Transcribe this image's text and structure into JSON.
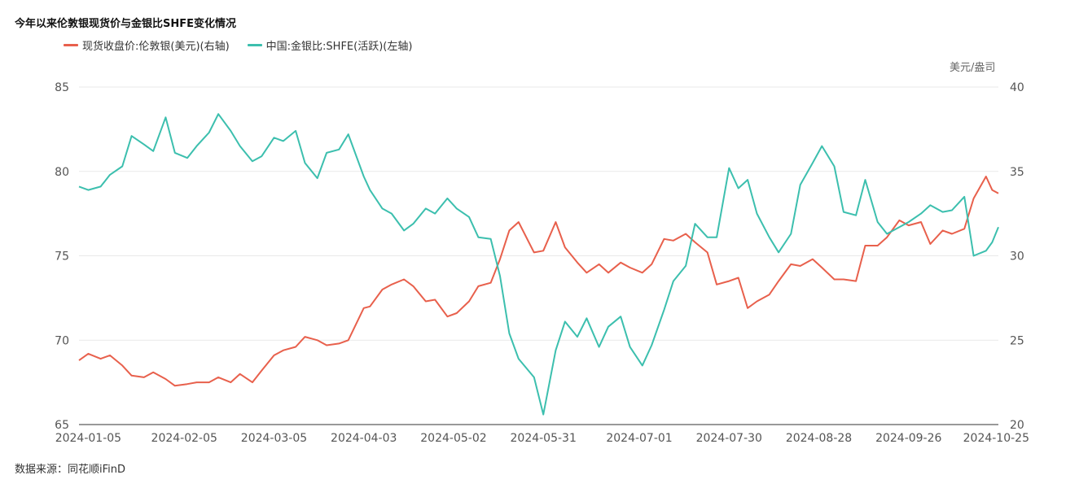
{
  "header": {
    "title": "今年以来伦敦银现货价与金银比SHFE变化情况"
  },
  "legend": [
    {
      "label": "现货收盘价:伦敦银(美元)(右轴)",
      "color": "#e8604c"
    },
    {
      "label": "中国:金银比:SHFE(活跃)(左轴)",
      "color": "#3cbfae"
    }
  ],
  "right_axis_unit": "美元/盎司",
  "footer": {
    "source": "数据来源：同花顺iFinD"
  },
  "chart_data": {
    "type": "line",
    "title": "今年以来伦敦银现货价与金银比SHFE变化情况",
    "x_ticks": [
      "2024-01-05",
      "2024-02-05",
      "2024-03-05",
      "2024-04-03",
      "2024-05-02",
      "2024-05-31",
      "2024-07-01",
      "2024-07-30",
      "2024-08-28",
      "2024-09-26",
      "2024-10-25"
    ],
    "x_range": [
      "2024-01-02",
      "2024-10-25"
    ],
    "left_axis": {
      "ylim": [
        65,
        85
      ],
      "ticks": [
        65,
        70,
        75,
        80,
        85
      ]
    },
    "right_axis": {
      "ylim": [
        20,
        40
      ],
      "ticks": [
        20,
        25,
        30,
        35,
        40
      ],
      "unit": "美元/盎司"
    },
    "grid": true,
    "legend_position": "top-left",
    "series": [
      {
        "name": "现货收盘价:伦敦银(美元)(右轴)",
        "axis": "right",
        "color": "#e8604c",
        "points": [
          [
            "2024-01-02",
            23.8
          ],
          [
            "2024-01-05",
            24.2
          ],
          [
            "2024-01-09",
            23.9
          ],
          [
            "2024-01-12",
            24.1
          ],
          [
            "2024-01-16",
            23.5
          ],
          [
            "2024-01-19",
            22.9
          ],
          [
            "2024-01-23",
            22.8
          ],
          [
            "2024-01-26",
            23.1
          ],
          [
            "2024-01-30",
            22.7
          ],
          [
            "2024-02-02",
            22.3
          ],
          [
            "2024-02-06",
            22.4
          ],
          [
            "2024-02-09",
            22.5
          ],
          [
            "2024-02-13",
            22.5
          ],
          [
            "2024-02-16",
            22.8
          ],
          [
            "2024-02-20",
            22.5
          ],
          [
            "2024-02-23",
            23.0
          ],
          [
            "2024-02-27",
            22.5
          ],
          [
            "2024-03-01",
            23.2
          ],
          [
            "2024-03-05",
            24.1
          ],
          [
            "2024-03-08",
            24.4
          ],
          [
            "2024-03-12",
            24.6
          ],
          [
            "2024-03-15",
            25.2
          ],
          [
            "2024-03-19",
            25.0
          ],
          [
            "2024-03-22",
            24.7
          ],
          [
            "2024-03-26",
            24.8
          ],
          [
            "2024-03-29",
            25.0
          ],
          [
            "2024-04-03",
            26.9
          ],
          [
            "2024-04-05",
            27.0
          ],
          [
            "2024-04-09",
            28.0
          ],
          [
            "2024-04-12",
            28.3
          ],
          [
            "2024-04-16",
            28.6
          ],
          [
            "2024-04-19",
            28.2
          ],
          [
            "2024-04-23",
            27.3
          ],
          [
            "2024-04-26",
            27.4
          ],
          [
            "2024-04-30",
            26.4
          ],
          [
            "2024-05-03",
            26.6
          ],
          [
            "2024-05-07",
            27.3
          ],
          [
            "2024-05-10",
            28.2
          ],
          [
            "2024-05-14",
            28.4
          ],
          [
            "2024-05-17",
            29.8
          ],
          [
            "2024-05-20",
            31.5
          ],
          [
            "2024-05-23",
            32.0
          ],
          [
            "2024-05-28",
            30.2
          ],
          [
            "2024-05-31",
            30.3
          ],
          [
            "2024-06-04",
            32.0
          ],
          [
            "2024-06-07",
            30.5
          ],
          [
            "2024-06-11",
            29.6
          ],
          [
            "2024-06-14",
            29.0
          ],
          [
            "2024-06-18",
            29.5
          ],
          [
            "2024-06-21",
            29.0
          ],
          [
            "2024-06-25",
            29.6
          ],
          [
            "2024-06-28",
            29.3
          ],
          [
            "2024-07-02",
            29.0
          ],
          [
            "2024-07-05",
            29.5
          ],
          [
            "2024-07-09",
            31.0
          ],
          [
            "2024-07-12",
            30.9
          ],
          [
            "2024-07-16",
            31.3
          ],
          [
            "2024-07-19",
            30.8
          ],
          [
            "2024-07-23",
            30.2
          ],
          [
            "2024-07-26",
            28.3
          ],
          [
            "2024-07-30",
            28.5
          ],
          [
            "2024-08-02",
            28.7
          ],
          [
            "2024-08-05",
            26.9
          ],
          [
            "2024-08-08",
            27.3
          ],
          [
            "2024-08-12",
            27.7
          ],
          [
            "2024-08-15",
            28.5
          ],
          [
            "2024-08-19",
            29.5
          ],
          [
            "2024-08-22",
            29.4
          ],
          [
            "2024-08-26",
            29.8
          ],
          [
            "2024-08-29",
            29.3
          ],
          [
            "2024-09-02",
            28.6
          ],
          [
            "2024-09-05",
            28.6
          ],
          [
            "2024-09-09",
            28.5
          ],
          [
            "2024-09-12",
            30.6
          ],
          [
            "2024-09-16",
            30.6
          ],
          [
            "2024-09-19",
            31.1
          ],
          [
            "2024-09-23",
            32.1
          ],
          [
            "2024-09-26",
            31.8
          ],
          [
            "2024-09-30",
            32.0
          ],
          [
            "2024-10-03",
            30.7
          ],
          [
            "2024-10-07",
            31.5
          ],
          [
            "2024-10-10",
            31.3
          ],
          [
            "2024-10-14",
            31.6
          ],
          [
            "2024-10-17",
            33.4
          ],
          [
            "2024-10-21",
            34.7
          ],
          [
            "2024-10-23",
            33.9
          ],
          [
            "2024-10-25",
            33.7
          ]
        ]
      },
      {
        "name": "中国:金银比:SHFE(活跃)(左轴)",
        "axis": "left",
        "color": "#3cbfae",
        "points": [
          [
            "2024-01-02",
            79.1
          ],
          [
            "2024-01-05",
            78.9
          ],
          [
            "2024-01-09",
            79.1
          ],
          [
            "2024-01-12",
            79.8
          ],
          [
            "2024-01-16",
            80.3
          ],
          [
            "2024-01-19",
            82.1
          ],
          [
            "2024-01-23",
            81.6
          ],
          [
            "2024-01-26",
            81.2
          ],
          [
            "2024-01-30",
            83.2
          ],
          [
            "2024-02-02",
            81.1
          ],
          [
            "2024-02-06",
            80.8
          ],
          [
            "2024-02-09",
            81.5
          ],
          [
            "2024-02-13",
            82.3
          ],
          [
            "2024-02-16",
            83.4
          ],
          [
            "2024-02-20",
            82.4
          ],
          [
            "2024-02-23",
            81.5
          ],
          [
            "2024-02-27",
            80.6
          ],
          [
            "2024-03-01",
            80.9
          ],
          [
            "2024-03-05",
            82.0
          ],
          [
            "2024-03-08",
            81.8
          ],
          [
            "2024-03-12",
            82.4
          ],
          [
            "2024-03-15",
            80.5
          ],
          [
            "2024-03-19",
            79.6
          ],
          [
            "2024-03-22",
            81.1
          ],
          [
            "2024-03-26",
            81.3
          ],
          [
            "2024-03-29",
            82.2
          ],
          [
            "2024-04-03",
            79.7
          ],
          [
            "2024-04-05",
            78.9
          ],
          [
            "2024-04-09",
            77.8
          ],
          [
            "2024-04-12",
            77.5
          ],
          [
            "2024-04-16",
            76.5
          ],
          [
            "2024-04-19",
            76.9
          ],
          [
            "2024-04-23",
            77.8
          ],
          [
            "2024-04-26",
            77.5
          ],
          [
            "2024-04-30",
            78.4
          ],
          [
            "2024-05-03",
            77.8
          ],
          [
            "2024-05-07",
            77.3
          ],
          [
            "2024-05-10",
            76.1
          ],
          [
            "2024-05-14",
            76.0
          ],
          [
            "2024-05-17",
            73.8
          ],
          [
            "2024-05-20",
            70.4
          ],
          [
            "2024-05-23",
            68.9
          ],
          [
            "2024-05-28",
            67.8
          ],
          [
            "2024-05-31",
            65.6
          ],
          [
            "2024-06-04",
            69.4
          ],
          [
            "2024-06-07",
            71.1
          ],
          [
            "2024-06-11",
            70.2
          ],
          [
            "2024-06-14",
            71.3
          ],
          [
            "2024-06-18",
            69.6
          ],
          [
            "2024-06-21",
            70.8
          ],
          [
            "2024-06-25",
            71.4
          ],
          [
            "2024-06-28",
            69.6
          ],
          [
            "2024-07-02",
            68.5
          ],
          [
            "2024-07-05",
            69.7
          ],
          [
            "2024-07-09",
            71.8
          ],
          [
            "2024-07-12",
            73.5
          ],
          [
            "2024-07-16",
            74.4
          ],
          [
            "2024-07-19",
            76.9
          ],
          [
            "2024-07-23",
            76.1
          ],
          [
            "2024-07-26",
            76.1
          ],
          [
            "2024-07-30",
            80.2
          ],
          [
            "2024-08-02",
            79.0
          ],
          [
            "2024-08-05",
            79.5
          ],
          [
            "2024-08-08",
            77.5
          ],
          [
            "2024-08-12",
            76.1
          ],
          [
            "2024-08-15",
            75.2
          ],
          [
            "2024-08-19",
            76.3
          ],
          [
            "2024-08-22",
            79.2
          ],
          [
            "2024-08-26",
            80.5
          ],
          [
            "2024-08-29",
            81.5
          ],
          [
            "2024-09-02",
            80.3
          ],
          [
            "2024-09-05",
            77.6
          ],
          [
            "2024-09-09",
            77.4
          ],
          [
            "2024-09-12",
            79.5
          ],
          [
            "2024-09-16",
            77.0
          ],
          [
            "2024-09-19",
            76.3
          ],
          [
            "2024-09-23",
            76.7
          ],
          [
            "2024-09-26",
            77.0
          ],
          [
            "2024-09-30",
            77.5
          ],
          [
            "2024-10-03",
            78.0
          ],
          [
            "2024-10-07",
            77.6
          ],
          [
            "2024-10-10",
            77.7
          ],
          [
            "2024-10-14",
            78.5
          ],
          [
            "2024-10-17",
            75.0
          ],
          [
            "2024-10-21",
            75.3
          ],
          [
            "2024-10-23",
            75.8
          ],
          [
            "2024-10-25",
            76.7
          ]
        ]
      }
    ]
  }
}
